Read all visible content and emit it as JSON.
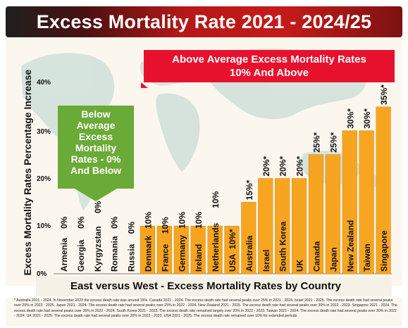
{
  "header": {
    "title": "Excess Mortality Rate 2021 - 2024/25"
  },
  "callouts": {
    "above": "Above Average Excess Mortality Rates 10% And Above",
    "above_line1": "Above Average Excess Mortality Rates",
    "above_line2": "10% And Above",
    "below_lines": [
      "Below",
      "Average",
      "Excess",
      "Mortality",
      "Rates - 0%",
      "And Below"
    ]
  },
  "footnote": "* Australia 2021 - 2024. In November 2023 the excess death rate was around 15%. Canada 2021 - 2024. The excess death rate had several peaks over 25% in 2021 - 2024. Israel 2021 - 2025. The excess death rate had several peaks over 20% in 2023 - 2025. Japan 2021 - 2024. The excess death rate had several peaks over 25% in 2022 - 2024. New Zealand 2021 - 2025. The excess death rate had several peaks over 30% in 2022 - 2023. Singapore 2021 - 2024. The excess death rate had several peaks over 35% in 2022 - 2024. South Korea 2021 - 2023. The excess death rate remained largely over 20% in 2022 - 2023. Taiwan 2021 - 2024. The excess death rate had several peaks over 30% in 2022 - 2024. UK 2021 - 2025. The excess death rate had several peaks over 20% in 2022 - 2023. USA 2021 - 2025. The excess death rate remained over 10% for extended periods.",
  "colors": {
    "bar": "#f7a521",
    "bar_stroke": "#d88a10",
    "banner": "#c61a1a",
    "callout_red": "#e8112d",
    "callout_green": "#6aaa36"
  },
  "chart_data": {
    "type": "bar",
    "title": "Excess Mortality Rate 2021 - 2024/25",
    "xlabel": "East versus West - Excess Mortality Rates by Country",
    "ylabel": "Excess Mortality Rates Percentage Increase",
    "ylim": [
      0,
      40
    ],
    "yticks": [
      "0%",
      "10%",
      "20%",
      "30%",
      "40%"
    ],
    "ytick_values": [
      0,
      10,
      20,
      30,
      40
    ],
    "grid": false,
    "categories": [
      "Armenia",
      "Georgia",
      "Kyrgyzstan",
      "Romania",
      "Russia",
      "Denmark",
      "France",
      "Germany",
      "Ireland",
      "Netherlands",
      "USA",
      "Australia",
      "Israel",
      "South Korea",
      "UK",
      "Canada",
      "Japan",
      "New Zealand",
      "Taiwan",
      "Singapore"
    ],
    "values": [
      0,
      0,
      0,
      0,
      0,
      10,
      10,
      10,
      10,
      10,
      10,
      15,
      20,
      20,
      20,
      25,
      25,
      30,
      30,
      35
    ],
    "data_labels": [
      "0%",
      "0%",
      "0%",
      "0%",
      "0%",
      "10%",
      "10%",
      "10%",
      "10%",
      "10%",
      "10%*",
      "15%*",
      "20%*",
      "20%*",
      "20%*",
      "25%*",
      "25%*",
      "30%*",
      "30%*",
      "35%*"
    ],
    "label_position": [
      "in",
      "in",
      "in",
      "in",
      "in",
      "in",
      "in",
      "in",
      "in",
      "in",
      "in",
      "above",
      "above",
      "above",
      "above",
      "above",
      "above",
      "above",
      "above",
      "above"
    ]
  }
}
